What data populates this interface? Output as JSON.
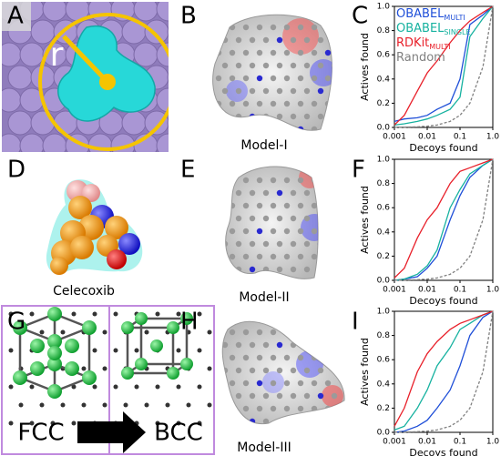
{
  "panel_labels": [
    "A",
    "B",
    "C",
    "D",
    "E",
    "F",
    "G",
    "H",
    "I"
  ],
  "radius_label": "r",
  "captions": {
    "ligand": "Celecoxib",
    "models": [
      "Model-I",
      "Model-II",
      "Model-III"
    ],
    "lattice_from": "FCC",
    "lattice_to": "BCC"
  },
  "chart_data": [
    {
      "type": "line",
      "xlabel": "Decoys found",
      "ylabel": "Actives found",
      "xscale": "log",
      "legend": "upper left",
      "x": [
        0.001,
        0.002,
        0.005,
        0.01,
        0.02,
        0.05,
        0.1,
        0.2,
        0.5,
        1
      ],
      "xlim": [
        0.001,
        1
      ],
      "xticks": [
        0.001,
        0.01,
        0.1,
        {
          "value": 1,
          "label": "1.0"
        }
      ],
      "ylim": [
        0,
        1
      ],
      "yticks": [
        {
          "value": 0,
          "label": "0.0"
        },
        0.2,
        0.4,
        0.6,
        0.8,
        {
          "value": 1,
          "label": "1.0"
        }
      ],
      "series": [
        {
          "name": "OBABEL",
          "name_subscript": "MULTI",
          "color": "#1f4fd8",
          "values": [
            0.05,
            0.07,
            0.08,
            0.1,
            0.15,
            0.2,
            0.4,
            0.85,
            0.93,
            1
          ]
        },
        {
          "name": "OBABEL",
          "name_subscript": "SINGLE",
          "color": "#17b2a0",
          "values": [
            0.02,
            0.03,
            0.05,
            0.07,
            0.1,
            0.15,
            0.25,
            0.75,
            0.9,
            1
          ]
        },
        {
          "name": "RDKit",
          "name_subscript": "MULTI",
          "color": "#e8202a",
          "values": [
            0.02,
            0.1,
            0.3,
            0.45,
            0.55,
            0.7,
            0.8,
            0.88,
            0.95,
            1
          ]
        },
        {
          "name": "Random",
          "color": "#808080",
          "linestyle": "dashed",
          "values": [
            0.001,
            0.002,
            0.005,
            0.01,
            0.02,
            0.05,
            0.1,
            0.2,
            0.5,
            1
          ]
        }
      ]
    },
    {
      "type": "line",
      "xlabel": "Decoys found",
      "ylabel": "Actives found",
      "xscale": "log",
      "x": [
        0.001,
        0.002,
        0.005,
        0.01,
        0.02,
        0.05,
        0.1,
        0.2,
        0.5,
        1
      ],
      "xlim": [
        0.001,
        1
      ],
      "xticks": [
        0.001,
        0.01,
        0.1,
        {
          "value": 1,
          "label": "1.0"
        }
      ],
      "ylim": [
        0,
        1
      ],
      "yticks": [
        {
          "value": 0,
          "label": "0.0"
        },
        0.2,
        0.4,
        0.6,
        0.8,
        {
          "value": 1,
          "label": "1.0"
        }
      ],
      "series": [
        {
          "color": "#1f4fd8",
          "values": [
            0,
            0.01,
            0.03,
            0.1,
            0.2,
            0.5,
            0.7,
            0.85,
            0.95,
            1
          ]
        },
        {
          "color": "#17b2a0",
          "values": [
            0,
            0.01,
            0.05,
            0.12,
            0.25,
            0.6,
            0.75,
            0.88,
            0.95,
            1
          ]
        },
        {
          "color": "#e8202a",
          "values": [
            0.02,
            0.1,
            0.35,
            0.5,
            0.6,
            0.8,
            0.9,
            0.93,
            0.97,
            1
          ]
        },
        {
          "color": "#808080",
          "linestyle": "dashed",
          "values": [
            0.001,
            0.002,
            0.005,
            0.01,
            0.02,
            0.05,
            0.1,
            0.2,
            0.5,
            1
          ]
        }
      ]
    },
    {
      "type": "line",
      "xlabel": "Decoys found",
      "ylabel": "Actives found",
      "xscale": "log",
      "x": [
        0.001,
        0.002,
        0.005,
        0.01,
        0.02,
        0.05,
        0.1,
        0.2,
        0.5,
        1
      ],
      "xlim": [
        0.001,
        1
      ],
      "xticks": [
        0.001,
        0.01,
        0.1,
        {
          "value": 1,
          "label": "1.0"
        }
      ],
      "ylim": [
        0,
        1
      ],
      "yticks": [
        {
          "value": 0,
          "label": "0.0"
        },
        0.2,
        0.4,
        0.6,
        0.8,
        {
          "value": 1,
          "label": "1.0"
        }
      ],
      "series": [
        {
          "color": "#1f4fd8",
          "values": [
            0,
            0.01,
            0.05,
            0.1,
            0.2,
            0.35,
            0.55,
            0.8,
            0.95,
            1
          ]
        },
        {
          "color": "#17b2a0",
          "values": [
            0.02,
            0.05,
            0.2,
            0.35,
            0.55,
            0.7,
            0.85,
            0.9,
            0.97,
            1
          ]
        },
        {
          "color": "#e8202a",
          "values": [
            0.05,
            0.2,
            0.5,
            0.65,
            0.75,
            0.85,
            0.9,
            0.93,
            0.97,
            1
          ]
        },
        {
          "color": "#808080",
          "linestyle": "dashed",
          "values": [
            0.001,
            0.002,
            0.005,
            0.01,
            0.02,
            0.05,
            0.1,
            0.2,
            0.5,
            1
          ]
        }
      ]
    }
  ]
}
